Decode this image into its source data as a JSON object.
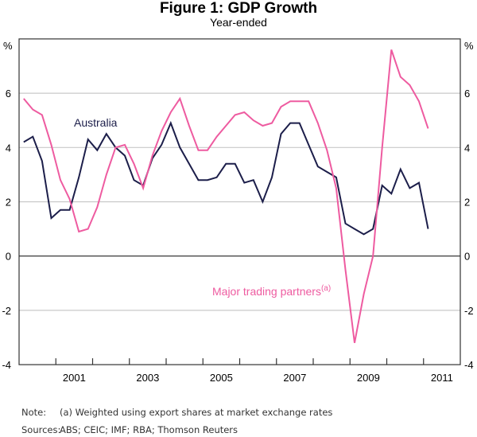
{
  "title": "Figure 1: GDP Growth",
  "subtitle": "Year-ended",
  "note_label": "Note:",
  "note_text": "(a) Weighted using export shares at market exchange rates",
  "sources_label": "Sources:",
  "sources_text": "ABS; CEIC; IMF; RBA; Thomson Reuters",
  "chart_data": {
    "type": "line",
    "title": "Figure 1: GDP Growth",
    "subtitle": "Year-ended",
    "ylabel_left": "%",
    "ylabel_right": "%",
    "ylim": [
      -4,
      8
    ],
    "yticks": [
      -4,
      -2,
      0,
      2,
      4,
      6
    ],
    "xlim": [
      2000,
      2012
    ],
    "xtick_labels": [
      "2001",
      "2003",
      "2005",
      "2007",
      "2009",
      "2011"
    ],
    "x_frequency": "quarterly, 2000 Q1 to 2011 Q1",
    "grid": true,
    "series": [
      {
        "name": "Australia",
        "color": "#1c1e4a",
        "values": [
          4.2,
          4.4,
          3.5,
          1.4,
          1.7,
          1.7,
          2.9,
          4.3,
          3.9,
          4.5,
          4.0,
          3.7,
          2.8,
          2.6,
          3.6,
          4.1,
          4.9,
          4.0,
          3.4,
          2.8,
          2.8,
          2.9,
          3.4,
          3.4,
          2.7,
          2.8,
          2.0,
          2.9,
          4.5,
          4.9,
          4.9,
          4.1,
          3.3,
          3.1,
          2.9,
          1.2,
          1.0,
          0.8,
          1.0,
          2.6,
          2.3,
          3.2,
          2.5,
          2.7,
          1.0
        ]
      },
      {
        "name": "Major trading partners",
        "name_superscript": "(a)",
        "color": "#ee5ba0",
        "values": [
          5.8,
          5.4,
          5.2,
          4.1,
          2.8,
          2.1,
          0.9,
          1.0,
          1.8,
          3.0,
          4.0,
          4.1,
          3.4,
          2.5,
          3.7,
          4.6,
          5.3,
          5.8,
          4.8,
          3.9,
          3.9,
          4.4,
          4.8,
          5.2,
          5.3,
          5.0,
          4.8,
          4.9,
          5.5,
          5.7,
          5.7,
          5.7,
          4.9,
          3.9,
          2.5,
          -0.5,
          -3.2,
          -1.4,
          0.0,
          4.0,
          7.6,
          6.6,
          6.3,
          5.7,
          4.7
        ]
      }
    ]
  }
}
